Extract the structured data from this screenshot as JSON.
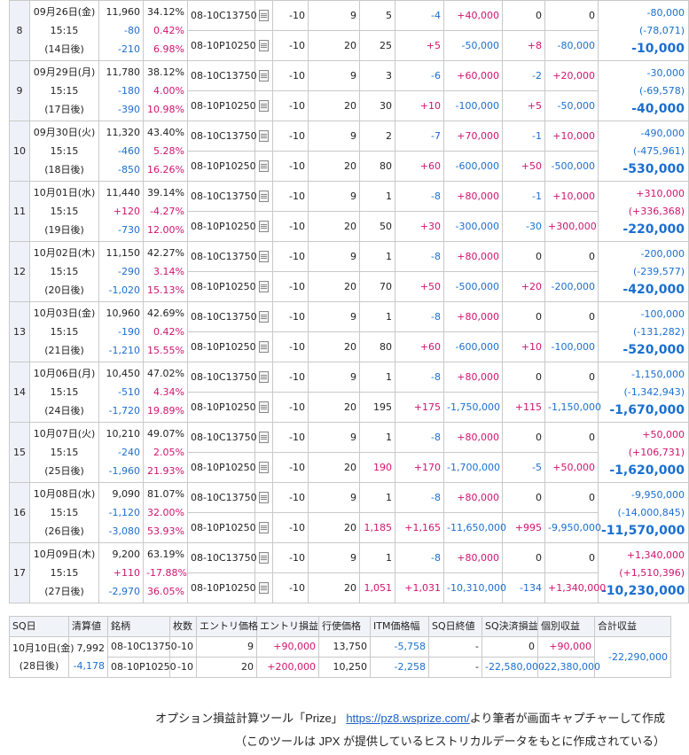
{
  "colors": {
    "neg": "#1a6fd0",
    "pos": "#d0136f"
  },
  "blocks": [
    {
      "idx": "8",
      "date": "09月26日(金)",
      "time": "15:15",
      "days": "(14日後)",
      "price": "11,960",
      "p_chg": "-80",
      "p_chg2": "-210",
      "iv": "34.12%",
      "iv_chg": "0.42%",
      "iv_chg2": "6.98%",
      "rows": [
        {
          "code": "08-10C13750",
          "lots": "-10",
          "entry": "9",
          "cur": "5",
          "diff": "-4",
          "pl": "+40,000",
          "sqdiff": "0",
          "sqpl": "0"
        },
        {
          "code": "08-10P10250",
          "lots": "-10",
          "entry": "20",
          "cur": "25",
          "diff": "+5",
          "pl": "-50,000",
          "sqdiff": "+8",
          "sqpl": "-80,000"
        }
      ],
      "t_main": "-10,000",
      "t_sub1": "-80,000",
      "t_sub2": "(-78,071)"
    },
    {
      "idx": "9",
      "date": "09月29日(月)",
      "time": "15:15",
      "days": "(17日後)",
      "price": "11,780",
      "p_chg": "-180",
      "p_chg2": "-390",
      "iv": "38.12%",
      "iv_chg": "4.00%",
      "iv_chg2": "10.98%",
      "rows": [
        {
          "code": "08-10C13750",
          "lots": "-10",
          "entry": "9",
          "cur": "3",
          "diff": "-6",
          "pl": "+60,000",
          "sqdiff": "-2",
          "sqpl": "+20,000"
        },
        {
          "code": "08-10P10250",
          "lots": "-10",
          "entry": "20",
          "cur": "30",
          "diff": "+10",
          "pl": "-100,000",
          "sqdiff": "+5",
          "sqpl": "-50,000"
        }
      ],
      "t_main": "-40,000",
      "t_sub1": "-30,000",
      "t_sub2": "(-69,578)"
    },
    {
      "idx": "10",
      "date": "09月30日(火)",
      "time": "15:15",
      "days": "(18日後)",
      "price": "11,320",
      "p_chg": "-460",
      "p_chg2": "-850",
      "iv": "43.40%",
      "iv_chg": "5.28%",
      "iv_chg2": "16.26%",
      "rows": [
        {
          "code": "08-10C13750",
          "lots": "-10",
          "entry": "9",
          "cur": "2",
          "diff": "-7",
          "pl": "+70,000",
          "sqdiff": "-1",
          "sqpl": "+10,000"
        },
        {
          "code": "08-10P10250",
          "lots": "-10",
          "entry": "20",
          "cur": "80",
          "diff": "+60",
          "pl": "-600,000",
          "sqdiff": "+50",
          "sqpl": "-500,000"
        }
      ],
      "t_main": "-530,000",
      "t_sub1": "-490,000",
      "t_sub2": "(-475,961)"
    },
    {
      "idx": "11",
      "date": "10月01日(水)",
      "time": "15:15",
      "days": "(19日後)",
      "price": "11,440",
      "p_chg": "+120",
      "p_chg2": "-730",
      "iv": "39.14%",
      "iv_chg": "-4.27%",
      "iv_chg2": "12.00%",
      "rows": [
        {
          "code": "08-10C13750",
          "lots": "-10",
          "entry": "9",
          "cur": "1",
          "diff": "-8",
          "pl": "+80,000",
          "sqdiff": "-1",
          "sqpl": "+10,000"
        },
        {
          "code": "08-10P10250",
          "lots": "-10",
          "entry": "20",
          "cur": "50",
          "diff": "+30",
          "pl": "-300,000",
          "sqdiff": "-30",
          "sqpl": "+300,000"
        }
      ],
      "t_main": "-220,000",
      "t_sub1": "+310,000",
      "t_sub2": "(+336,368)"
    },
    {
      "idx": "12",
      "date": "10月02日(木)",
      "time": "15:15",
      "days": "(20日後)",
      "price": "11,150",
      "p_chg": "-290",
      "p_chg2": "-1,020",
      "iv": "42.27%",
      "iv_chg": "3.14%",
      "iv_chg2": "15.13%",
      "rows": [
        {
          "code": "08-10C13750",
          "lots": "-10",
          "entry": "9",
          "cur": "1",
          "diff": "-8",
          "pl": "+80,000",
          "sqdiff": "0",
          "sqpl": "0"
        },
        {
          "code": "08-10P10250",
          "lots": "-10",
          "entry": "20",
          "cur": "70",
          "diff": "+50",
          "pl": "-500,000",
          "sqdiff": "+20",
          "sqpl": "-200,000"
        }
      ],
      "t_main": "-420,000",
      "t_sub1": "-200,000",
      "t_sub2": "(-239,577)"
    },
    {
      "idx": "13",
      "date": "10月03日(金)",
      "time": "15:15",
      "days": "(21日後)",
      "price": "10,960",
      "p_chg": "-190",
      "p_chg2": "-1,210",
      "iv": "42.69%",
      "iv_chg": "0.42%",
      "iv_chg2": "15.55%",
      "rows": [
        {
          "code": "08-10C13750",
          "lots": "-10",
          "entry": "9",
          "cur": "1",
          "diff": "-8",
          "pl": "+80,000",
          "sqdiff": "0",
          "sqpl": "0"
        },
        {
          "code": "08-10P10250",
          "lots": "-10",
          "entry": "20",
          "cur": "80",
          "diff": "+60",
          "pl": "-600,000",
          "sqdiff": "+10",
          "sqpl": "-100,000"
        }
      ],
      "t_main": "-520,000",
      "t_sub1": "-100,000",
      "t_sub2": "(-131,282)"
    },
    {
      "idx": "14",
      "date": "10月06日(月)",
      "time": "15:15",
      "days": "(24日後)",
      "price": "10,450",
      "p_chg": "-510",
      "p_chg2": "-1,720",
      "iv": "47.02%",
      "iv_chg": "4.34%",
      "iv_chg2": "19.89%",
      "rows": [
        {
          "code": "08-10C13750",
          "lots": "-10",
          "entry": "9",
          "cur": "1",
          "diff": "-8",
          "pl": "+80,000",
          "sqdiff": "0",
          "sqpl": "0"
        },
        {
          "code": "08-10P10250",
          "lots": "-10",
          "entry": "20",
          "cur": "195",
          "diff": "+175",
          "pl": "-1,750,000",
          "sqdiff": "+115",
          "sqpl": "-1,150,000"
        }
      ],
      "t_main": "-1,670,000",
      "t_sub1": "-1,150,000",
      "t_sub2": "(-1,342,943)"
    },
    {
      "idx": "15",
      "date": "10月07日(火)",
      "time": "15:15",
      "days": "(25日後)",
      "price": "10,210",
      "p_chg": "-240",
      "p_chg2": "-1,960",
      "iv": "49.07%",
      "iv_chg": "2.05%",
      "iv_chg2": "21.93%",
      "rows": [
        {
          "code": "08-10C13750",
          "lots": "-10",
          "entry": "9",
          "cur": "1",
          "diff": "-8",
          "pl": "+80,000",
          "sqdiff": "0",
          "sqpl": "0"
        },
        {
          "code": "08-10P10250",
          "lots": "-10",
          "entry": "20",
          "cur": "190",
          "diff": "+170",
          "pl": "-1,700,000",
          "sqdiff": "-5",
          "sqpl": "+50,000"
        }
      ],
      "t_main": "-1,620,000",
      "t_sub1": "+50,000",
      "t_sub2": "(+106,731)"
    },
    {
      "idx": "16",
      "date": "10月08日(水)",
      "time": "15:15",
      "days": "(26日後)",
      "price": "9,090",
      "p_chg": "-1,120",
      "p_chg2": "-3,080",
      "iv": "81.07%",
      "iv_chg": "32.00%",
      "iv_chg2": "53.93%",
      "rows": [
        {
          "code": "08-10C13750",
          "lots": "-10",
          "entry": "9",
          "cur": "1",
          "diff": "-8",
          "pl": "+80,000",
          "sqdiff": "0",
          "sqpl": "0"
        },
        {
          "code": "08-10P10250",
          "lots": "-10",
          "entry": "20",
          "cur": "1,185",
          "diff": "+1,165",
          "pl": "-11,650,000",
          "sqdiff": "+995",
          "sqpl": "-9,950,000"
        }
      ],
      "t_main": "-11,570,000",
      "t_sub1": "-9,950,000",
      "t_sub2": "(-14,000,845)"
    },
    {
      "idx": "17",
      "date": "10月09日(木)",
      "time": "15:15",
      "days": "(27日後)",
      "price": "9,200",
      "p_chg": "+110",
      "p_chg2": "-2,970",
      "iv": "63.19%",
      "iv_chg": "-17.88%",
      "iv_chg2": "36.05%",
      "rows": [
        {
          "code": "08-10C13750",
          "lots": "-10",
          "entry": "9",
          "cur": "1",
          "diff": "-8",
          "pl": "+80,000",
          "sqdiff": "0",
          "sqpl": "0"
        },
        {
          "code": "08-10P10250",
          "lots": "-10",
          "entry": "20",
          "cur": "1,051",
          "diff": "+1,031",
          "pl": "-10,310,000",
          "sqdiff": "-134",
          "sqpl": "+1,340,000"
        }
      ],
      "t_main": "-10,230,000",
      "t_sub1": "+1,340,000",
      "t_sub2": "(+1,510,396)"
    }
  ],
  "sq": {
    "headers": [
      "SQ日",
      "清算値",
      "銘柄",
      "枚数",
      "エントリ価格",
      "エントリ損益",
      "行使価格",
      "ITM価格幅",
      "SQ日終値",
      "SQ決済損益",
      "個別収益",
      "合計収益"
    ],
    "date": "10月10日(金)",
    "days": "(28日後)",
    "price": "7,992",
    "p_chg": "-4,178",
    "rows": [
      {
        "code": "08-10C13750",
        "lots": "-10",
        "entry": "9",
        "entry_pl": "+90,000",
        "strike": "13,750",
        "itm": "-5,758",
        "close": "-",
        "sq_pl": "0",
        "indiv": "+90,000"
      },
      {
        "code": "08-10P10250",
        "lots": "-10",
        "entry": "20",
        "entry_pl": "+200,000",
        "strike": "10,250",
        "itm": "-2,258",
        "close": "-",
        "sq_pl": "-22,580,000",
        "indiv": "-22,380,000"
      }
    ],
    "total": "-22,290,000"
  },
  "caption": {
    "line1_pre": "オプション損益計算ツール「Prize」",
    "link": "https://pz8.wsprize.com/",
    "line1_post": "より筆者が画面キャプチャーして作成",
    "line2": "（このツールは JPX が提供しているヒストリカルデータをもとに作成されている）"
  }
}
